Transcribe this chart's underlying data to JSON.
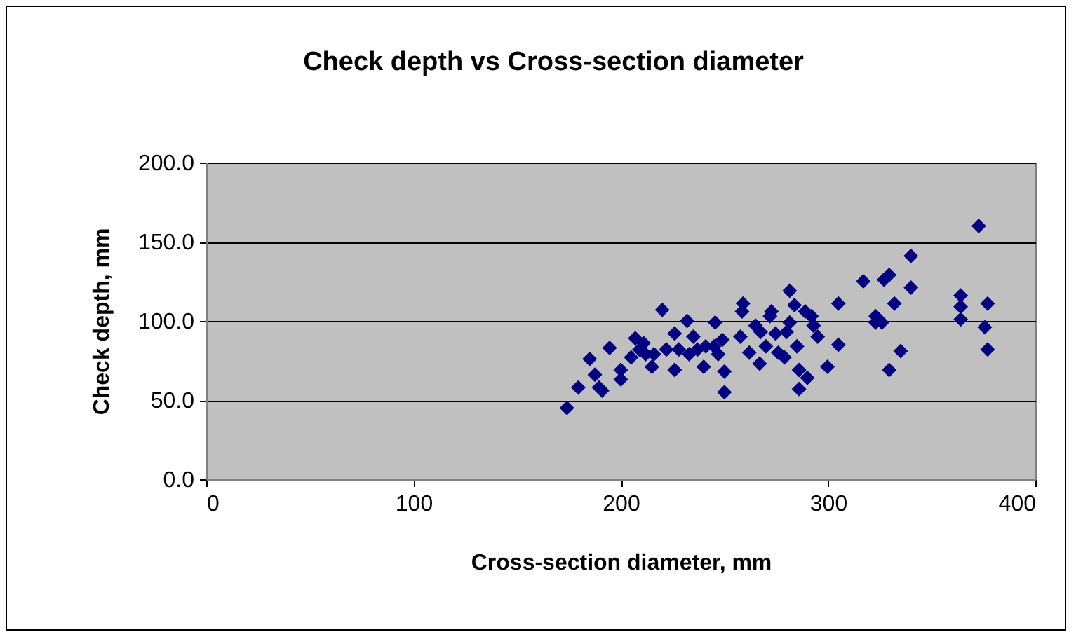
{
  "chart_data": {
    "type": "scatter",
    "title": "Check depth vs Cross-section diameter",
    "xlabel": "Cross-section diameter, mm",
    "ylabel": "Check depth, mm",
    "x": [
      174,
      179.5,
      185,
      187.5,
      189.5,
      191,
      194.6,
      200,
      200,
      205,
      207,
      209,
      211,
      212,
      215,
      216,
      220,
      222,
      226,
      226,
      228,
      232,
      233,
      235,
      237,
      240,
      241,
      245,
      245.5,
      247,
      249,
      250,
      250,
      257.7,
      258.5,
      259,
      262,
      265,
      267,
      267.5,
      270,
      272,
      272.7,
      274.7,
      276,
      279,
      280,
      281.5,
      281.5,
      283.8,
      285,
      286,
      286,
      289,
      290,
      292,
      293,
      295,
      299.7,
      305,
      305,
      317,
      323,
      323,
      326,
      327,
      329.5,
      329.5,
      332,
      335,
      340,
      340,
      364,
      364,
      364,
      372.7,
      375.6,
      377,
      377
    ],
    "series": [
      {
        "color": "#000080",
        "values": [
          45,
          58,
          76,
          66,
          58,
          56,
          83,
          69,
          63,
          77,
          89,
          82,
          86,
          79,
          71,
          79,
          107,
          82,
          69,
          92,
          82,
          100,
          79,
          90,
          82,
          71,
          84,
          84,
          99,
          79,
          88,
          68,
          55,
          90,
          106,
          111,
          80,
          97,
          73,
          93,
          84,
          103,
          106,
          92,
          80,
          77,
          93,
          99,
          119,
          110,
          84,
          69,
          57,
          106,
          64,
          103,
          97,
          90,
          71,
          111,
          85,
          125,
          103,
          99,
          99,
          126,
          129,
          69,
          111,
          81,
          141,
          121,
          116,
          109,
          101,
          160,
          96,
          111,
          82
        ]
      }
    ],
    "xlim": [
      0,
      400
    ],
    "xticks": [
      0,
      100,
      200,
      300,
      400
    ],
    "ylim": [
      0,
      200
    ],
    "yticks": [
      {
        "value": 0,
        "label": "0.0"
      },
      {
        "value": 50,
        "label": "50.0"
      },
      {
        "value": 100,
        "label": "100.0"
      },
      {
        "value": 150,
        "label": "150.0"
      },
      {
        "value": 200,
        "label": "200.0"
      }
    ],
    "grid": "y",
    "marker": "diamond"
  }
}
